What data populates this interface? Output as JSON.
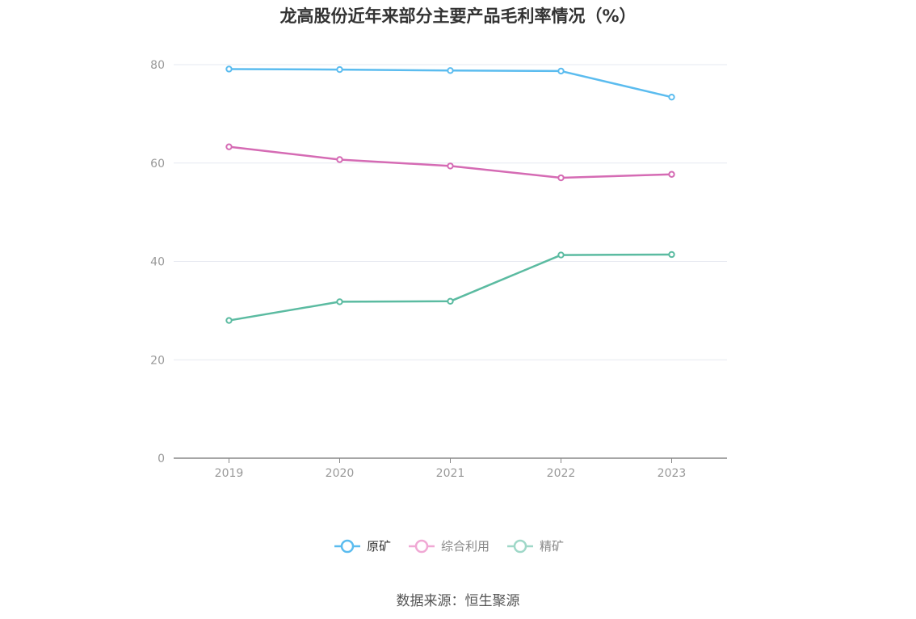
{
  "title": "龙高股份近年来部分主要产品毛利率情况（%）",
  "source": "数据来源：恒生聚源",
  "chart_data": {
    "type": "line",
    "categories": [
      "2019",
      "2020",
      "2021",
      "2022",
      "2023"
    ],
    "series": [
      {
        "name": "原矿",
        "color": "#5bbcef",
        "values": [
          79.1,
          79.0,
          78.8,
          78.7,
          73.4
        ]
      },
      {
        "name": "综合利用",
        "color": "#d56bb4",
        "values": [
          63.3,
          60.7,
          59.4,
          57.0,
          57.7
        ]
      },
      {
        "name": "精矿",
        "color": "#5bbba1",
        "values": [
          28.0,
          31.8,
          31.9,
          41.3,
          41.4
        ]
      }
    ],
    "yticks": [
      0,
      20,
      40,
      60,
      80
    ],
    "ylim": [
      0,
      80
    ],
    "grid": true,
    "legend_position": "bottom-center"
  }
}
